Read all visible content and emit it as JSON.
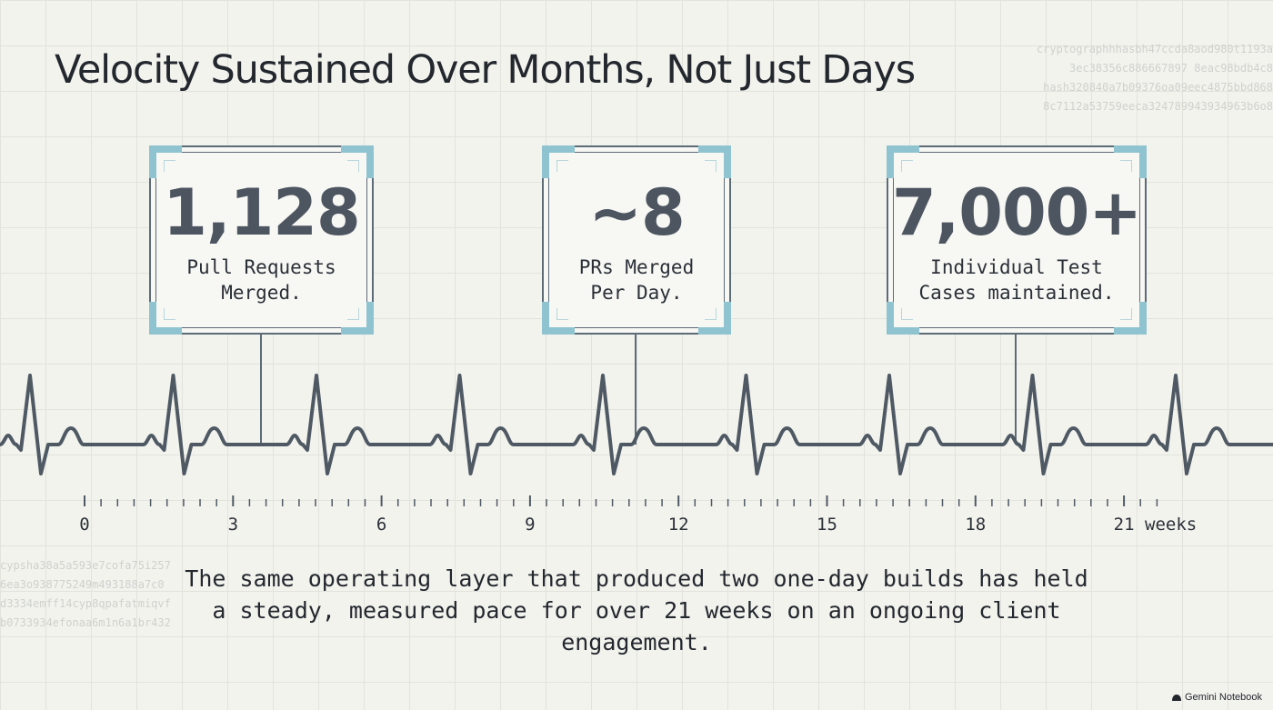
{
  "title": "Velocity Sustained Over Months, Not Just Days",
  "stats": [
    {
      "value": "1,128",
      "label": "Pull Requests\nMerged."
    },
    {
      "value": "~8",
      "label": "PRs Merged\nPer Day."
    },
    {
      "value": "7,000+",
      "label": "Individual Test\nCases maintained."
    }
  ],
  "timeline": {
    "ticks": [
      "0",
      "3",
      "6",
      "9",
      "12",
      "15",
      "18",
      "21"
    ],
    "unit": "weeks"
  },
  "caption": "The same operating layer that produced two one-day builds has held a steady, measured pace for over 21 weeks on an ongoing client engagement.",
  "decor_hashes": {
    "top_right": [
      "cryptographhhasbh47ccda8aod980t1193a",
      "3ec38356c886667897 8eac98bdb4c8",
      "hash320840a7b09376oa09eec4875bbd868",
      "8c7112a53759eeca324789943934963b6o8"
    ],
    "bottom_left": [
      "cypsha38a5a593e7cofa75i257",
      "6ea3o938775249m493188a7c0",
      "d3334emff14cyp8qpafatmiqvf",
      "b0733934efonaa6m1n6a1br432"
    ]
  },
  "brand": "Gemini Notebook",
  "colors": {
    "accent": "#8fc3cf",
    "ink": "#4d5561",
    "line": "#4f5964",
    "background": "#f3f3ee"
  }
}
